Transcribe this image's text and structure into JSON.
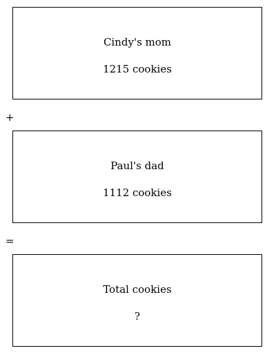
{
  "boxes": [
    {
      "title": "Cindy's mom",
      "value": "1215 cookies"
    },
    {
      "title": "Paul's dad",
      "value": "1112 cookies"
    },
    {
      "title": "Total cookies",
      "value": "?"
    }
  ],
  "operators": {
    "plus": "+",
    "equals": "="
  }
}
